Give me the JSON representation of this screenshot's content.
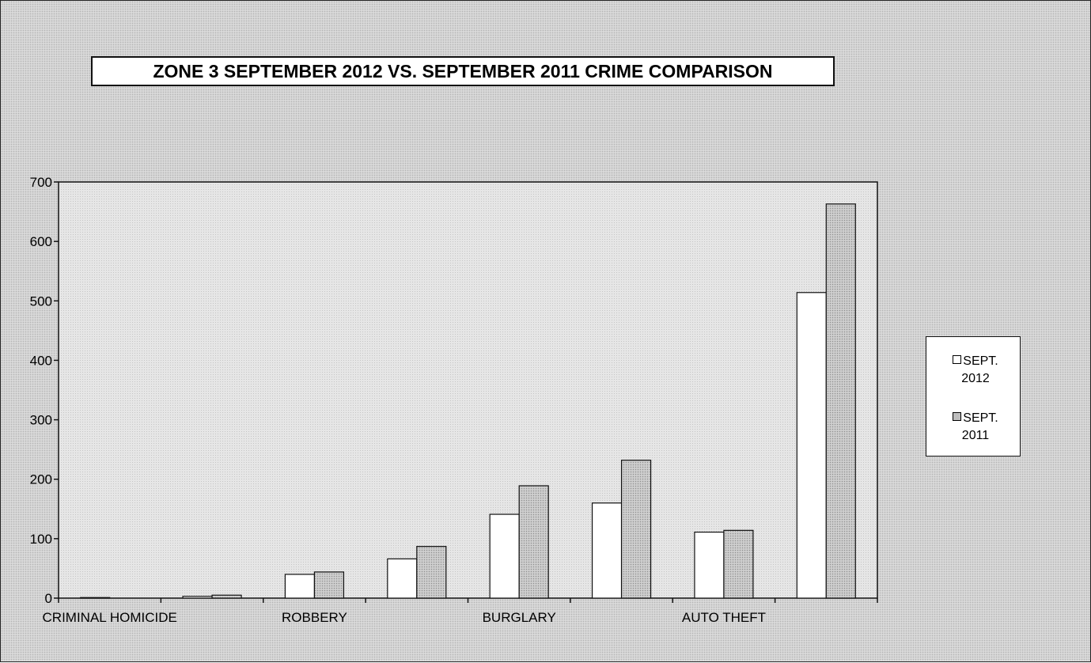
{
  "chart_data": {
    "type": "bar",
    "title": "ZONE 3  SEPTEMBER 2012 VS. SEPTEMBER 2011 CRIME COMPARISON",
    "xlabel": "",
    "ylabel": "",
    "ylim": [
      0,
      700
    ],
    "yticks": [
      0,
      100,
      200,
      300,
      400,
      500,
      600,
      700
    ],
    "categories": [
      "CRIMINAL HOMICIDE",
      "",
      "ROBBERY",
      "",
      "BURGLARY",
      "",
      "AUTO THEFT",
      ""
    ],
    "series": [
      {
        "name": "SEPT. 2012",
        "values": [
          1,
          3,
          40,
          66,
          141,
          160,
          111,
          514
        ],
        "color": "#ffffff"
      },
      {
        "name": "SEPT. 2011",
        "values": [
          0,
          5,
          44,
          87,
          189,
          232,
          114,
          663
        ],
        "color": "#c8c8c8"
      }
    ],
    "legend": {
      "position": "right",
      "items": [
        {
          "line1": "SEPT.",
          "line2": "2012"
        },
        {
          "line1": "SEPT.",
          "line2": "2011"
        }
      ]
    },
    "grid": false
  }
}
